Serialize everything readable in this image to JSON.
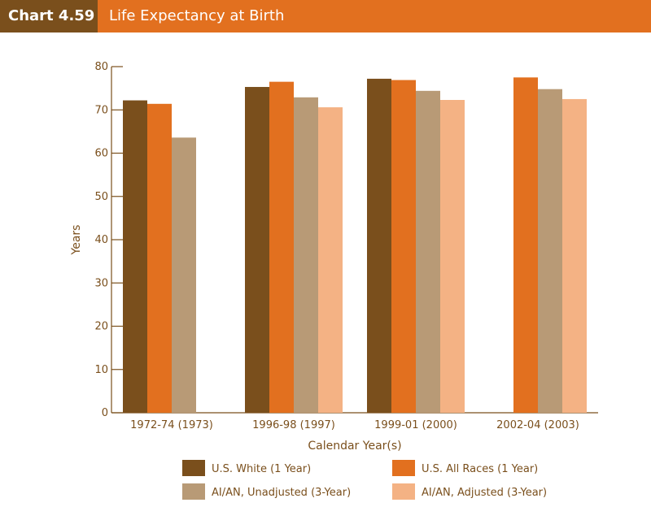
{
  "header": {
    "chart_number": "Chart 4.59",
    "title": "Life Expectancy at Birth"
  },
  "colors": {
    "header_left": "#7a4f1c",
    "header_right": "#e2701f",
    "axis": "#7a4f1c"
  },
  "chart_data": {
    "type": "bar",
    "title": "Life Expectancy at Birth",
    "xlabel": "Calendar Year(s)",
    "ylabel": "Years",
    "ylim": [
      0,
      80
    ],
    "yticks": [
      0,
      10,
      20,
      30,
      40,
      50,
      60,
      70,
      80
    ],
    "categories": [
      "1972-74 (1973)",
      "1996-98 (1997)",
      "1999-01 (2000)",
      "2002-04 (2003)"
    ],
    "legend_position": "bottom",
    "grid": false,
    "series": [
      {
        "name": "U.S. White (1 Year)",
        "color": "#7a4f1c",
        "values": [
          72.2,
          75.3,
          77.2,
          null
        ]
      },
      {
        "name": "U.S. All Races (1 Year)",
        "color": "#e2701f",
        "values": [
          71.4,
          76.5,
          76.9,
          77.5
        ]
      },
      {
        "name": "AI/AN, Unadjusted (3-Year)",
        "color": "#b89a76",
        "values": [
          63.6,
          72.9,
          74.4,
          74.8
        ]
      },
      {
        "name": "AI/AN, Adjusted (3-Year)",
        "color": "#f4b284",
        "values": [
          null,
          70.6,
          72.3,
          72.5
        ]
      }
    ]
  }
}
